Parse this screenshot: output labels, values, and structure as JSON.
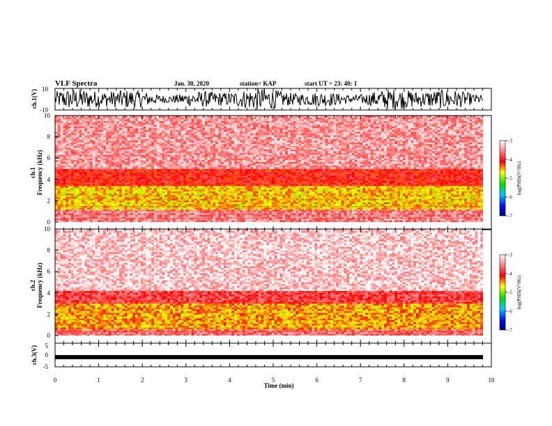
{
  "header": {
    "title": "VLF Spectra",
    "date": "Jan. 30, 2020",
    "station": "station= KAP",
    "start": "start  UT =   23: 40: 1"
  },
  "chart_data": [
    {
      "type": "line",
      "name": "ch1-waveform",
      "ylabel": "ch.1(V)",
      "ylim": [
        -10,
        10
      ],
      "yticks": [
        "10",
        "-10"
      ],
      "xlim": [
        0,
        10
      ],
      "description_level_mean": 0
    },
    {
      "type": "heatmap",
      "name": "ch1-spectrogram",
      "ylabel_top": "ch.1",
      "ylabel": "Frequency (kHz)",
      "ylim": [
        0,
        10
      ],
      "yticks": [
        "0",
        "2",
        "4",
        "6",
        "8",
        "10"
      ],
      "xlim": [
        0,
        9.85
      ],
      "colorbar": {
        "label": "log(PSD)(V²/Hz)",
        "min": -7,
        "max": -3,
        "ticks": [
          "-3",
          "-4",
          "-5",
          "-6",
          "-7"
        ]
      },
      "bands": [
        {
          "f_low": 0,
          "f_high": 1.2,
          "level": -3.5
        },
        {
          "f_low": 1.2,
          "f_high": 3.4,
          "level": -4.6
        },
        {
          "f_low": 3.4,
          "f_high": 5.0,
          "level": -4.0
        },
        {
          "f_low": 5.0,
          "f_high": 10,
          "level": -3.4
        }
      ]
    },
    {
      "type": "heatmap",
      "name": "ch2-spectrogram",
      "ylabel_top": "ch.2",
      "ylabel": "Frequency (kHz)",
      "ylim": [
        0,
        10
      ],
      "yticks": [
        "0",
        "2",
        "4",
        "6",
        "8",
        "10"
      ],
      "xlim": [
        0,
        9.85
      ],
      "colorbar": {
        "label": "log(PSD)(V²/Hz)",
        "min": -7,
        "max": -3,
        "ticks": [
          "-3",
          "-4",
          "-5",
          "-6",
          "-7"
        ]
      },
      "bands": [
        {
          "f_low": 0,
          "f_high": 0.6,
          "level": -3.6
        },
        {
          "f_low": 0.6,
          "f_high": 3.0,
          "level": -4.5
        },
        {
          "f_low": 3.0,
          "f_high": 4.2,
          "level": -3.8
        },
        {
          "f_low": 4.2,
          "f_high": 10,
          "level": -3.2
        }
      ]
    },
    {
      "type": "line",
      "name": "ch3-waveform",
      "ylabel": "ch.3(V)",
      "ylim": [
        -5,
        5
      ],
      "yticks": [
        "5",
        "0",
        "-5"
      ],
      "xlim": [
        0,
        10
      ],
      "level": -0.9
    }
  ],
  "xaxis": {
    "label": "Time (min)",
    "ticks": [
      "0",
      "1",
      "2",
      "3",
      "4",
      "5",
      "6",
      "7",
      "8",
      "9",
      "10"
    ]
  }
}
